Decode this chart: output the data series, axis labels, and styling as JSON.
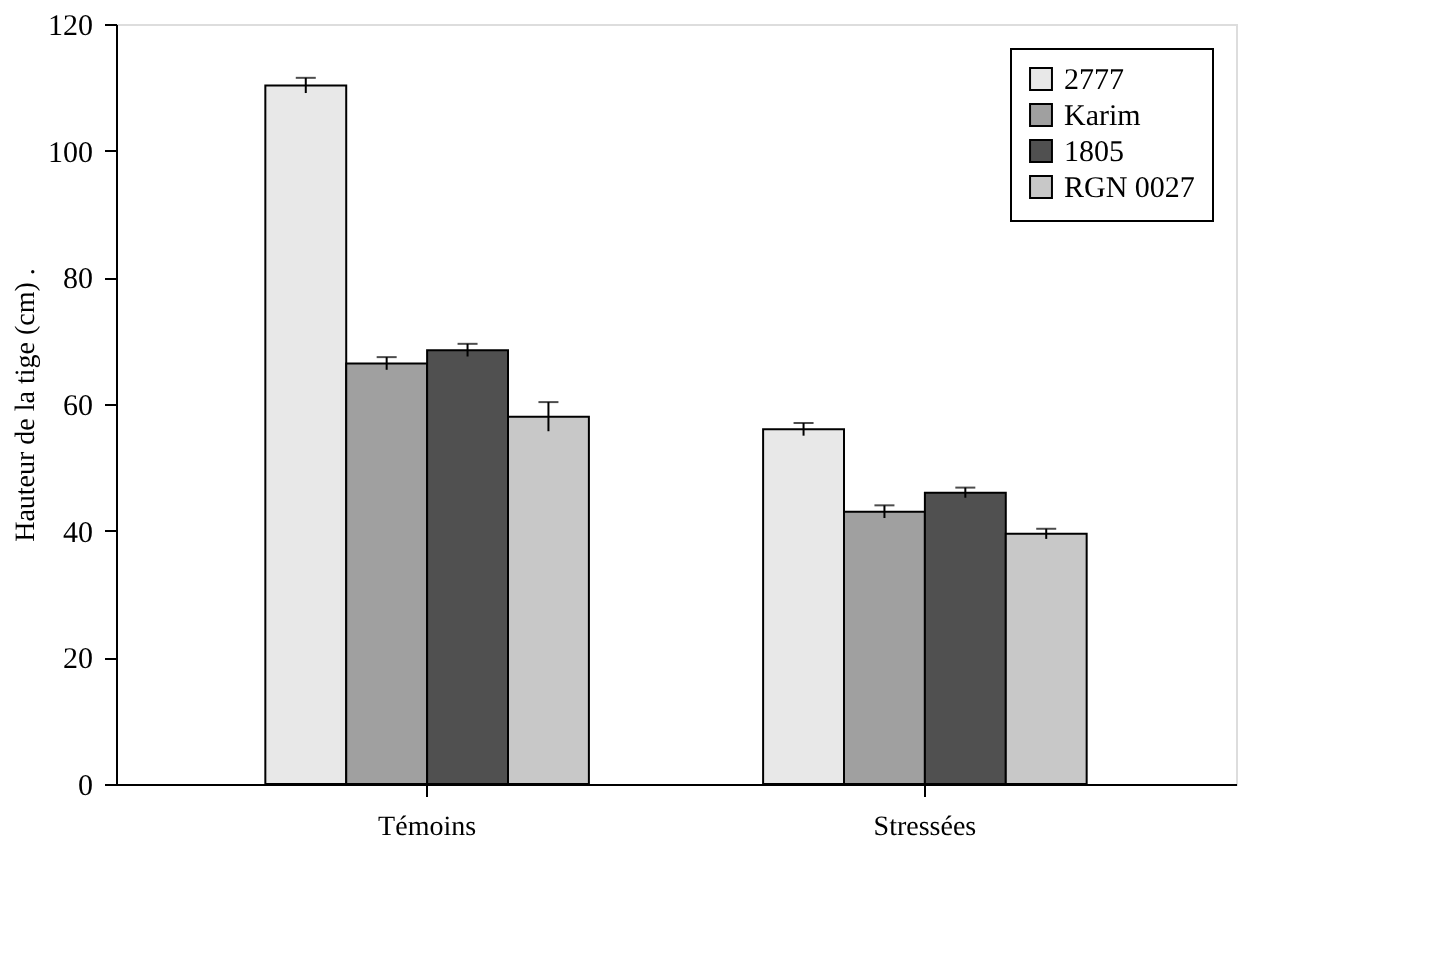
{
  "chart_data": {
    "type": "bar",
    "ylabel": "Hauteur de la tige (cm) .",
    "categories": [
      "Témoins",
      "Stressées"
    ],
    "series": [
      {
        "name": "2777",
        "color": "#e8e8e8",
        "values": [
          110.3,
          56
        ],
        "errors": [
          1.2,
          1
        ]
      },
      {
        "name": "Karim",
        "color": "#a0a0a0",
        "values": [
          66.4,
          43
        ],
        "errors": [
          1,
          1
        ]
      },
      {
        "name": "1805",
        "color": "#505050",
        "values": [
          68.5,
          46
        ],
        "errors": [
          1,
          0.8
        ]
      },
      {
        "name": "RGN 0027",
        "color": "#c8c8c8",
        "values": [
          58,
          39.5
        ],
        "errors": [
          2.3,
          0.8
        ]
      }
    ],
    "ylim": [
      0,
      120
    ],
    "yticks": [
      0,
      20,
      40,
      60,
      80,
      100,
      120
    ],
    "grid": false,
    "legend": "top right"
  }
}
